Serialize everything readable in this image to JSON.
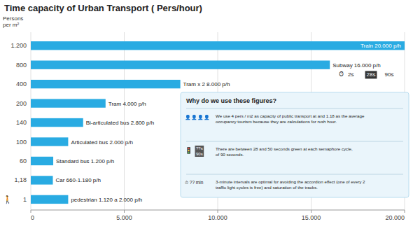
{
  "chart_data": {
    "type": "bar",
    "orientation": "horizontal",
    "title": "Time capacity of Urban Transport ( Pers/hour)",
    "ylabel": [
      "Persons",
      "per m²"
    ],
    "categories": [
      "1",
      "1,18",
      "60",
      "100",
      "140",
      "200",
      "400",
      "800",
      "1.200"
    ],
    "values": [
      2000,
      1180,
      1200,
      2000,
      2800,
      4000,
      8000,
      16000,
      20000
    ],
    "value_labels": [
      "pedestrian 1.120 a 2.000 p/h",
      "Car 660-1.180 p/h",
      "Standard bus 1.200 p/h",
      "Articulated bus 2.000 p/h",
      "Bi-articulated bus 2.800 p/h",
      "Tram 4.000 p/h",
      "Tram x 2 8.000 p/h",
      "Subway 16.000 p/h",
      "Train 20.000 p/h"
    ],
    "color": "#29abe2",
    "xlim": [
      0,
      20000
    ],
    "xticks": [
      0,
      {
        "value": 5000,
        "label": "5.000"
      },
      {
        "value": 10000,
        "label": "10.000"
      },
      {
        "value": 15000,
        "label": "15.000"
      },
      {
        "value": 20000,
        "label": "20.000"
      }
    ],
    "grid": true,
    "annotations": [
      "🚶",
      "⏱",
      "2s",
      "28s",
      "90s",
      "Why do we use these figures?",
      "👤👤👤👤",
      "We use 4 pers / m2 as capacity of public transport at and 1.18 as the average\noccupancy tourism because they are calculations for rush hour.",
      "🚦",
      "??s\n90s",
      "There are between 28 and 50 seconds green at each semaphore cycle,\nof 90 seconds.",
      "⏱ ?? min",
      "3-minute intervals are optimal for avoiding the accordion effect (one of every 2\ntraffic light cycles is free) and saturation of the tracks."
    ]
  }
}
